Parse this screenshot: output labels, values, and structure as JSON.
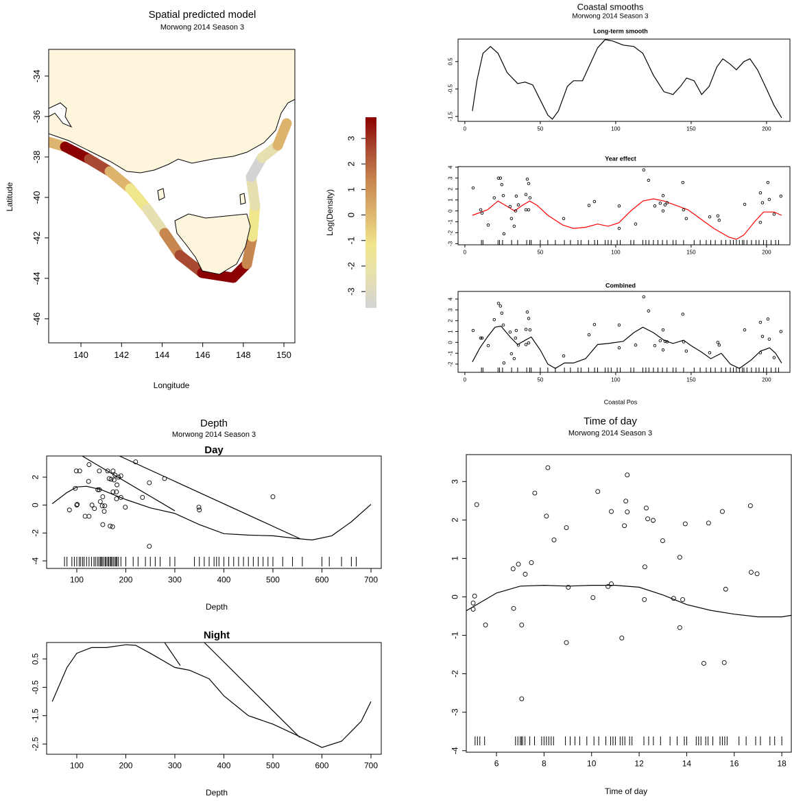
{
  "chart_data": [
    {
      "type": "map",
      "title": "Spatial predicted model",
      "subtitle": "Morwong 2014 Season 3",
      "xlabel": "Longitude",
      "ylabel": "Latitude",
      "xlim": [
        138.41,
        150.54
      ],
      "ylim": [
        -47.19,
        -32.68
      ],
      "xticks": [
        140,
        142,
        144,
        146,
        148,
        150
      ],
      "yticks": [
        -34,
        -36,
        -38,
        -40,
        -42,
        -44,
        -46
      ],
      "colorbar": {
        "label": "Log(Density)",
        "lim": [
          -3.64,
          3.83
        ],
        "ticks": [
          -3,
          -2,
          -1,
          0,
          1,
          2,
          3
        ],
        "colors": [
          "#d3d3d3",
          "#e6e0b0",
          "#f0e68c",
          "#dcb46e",
          "#c8874f",
          "#a84a32",
          "#8b0000"
        ]
      }
    },
    {
      "type": "line",
      "title": "Coastal smooths",
      "subtitle": "Morwong 2014 Season 3",
      "panel_title": "Long-term smooth",
      "xlim": [
        -4.5,
        215.5
      ],
      "ylim": [
        -1.68,
        1.32
      ],
      "xticks": [
        0,
        50,
        100,
        150,
        200
      ],
      "yticks": [
        -1.5,
        -0.5,
        0.5
      ],
      "smooth": [
        {
          "color": "#000000",
          "x": [
            5,
            8,
            12,
            17,
            22,
            28,
            35,
            40,
            45,
            50,
            55,
            58,
            62,
            68,
            72,
            78,
            83,
            88,
            93,
            98,
            105,
            112,
            118,
            125,
            132,
            138,
            143,
            147,
            152,
            157,
            162,
            167,
            171,
            176,
            180,
            185,
            189,
            194,
            200,
            205,
            210
          ],
          "values": [
            -1.3,
            -0.2,
            0.8,
            1.05,
            0.8,
            0.1,
            -0.3,
            -0.25,
            -0.35,
            -0.9,
            -1.45,
            -1.6,
            -1.3,
            -0.4,
            -0.2,
            -0.2,
            0.4,
            1.0,
            1.3,
            1.25,
            1.1,
            1.05,
            0.8,
            0.0,
            -0.6,
            -0.7,
            -0.4,
            -0.1,
            -0.2,
            -0.7,
            -0.4,
            0.3,
            0.6,
            0.4,
            0.2,
            0.5,
            0.6,
            0.2,
            -0.5,
            -1.1,
            -1.55
          ]
        }
      ]
    },
    {
      "type": "scatter",
      "panel_title": "Year effect",
      "xlim": [
        -4.5,
        215.5
      ],
      "ylim": [
        -3.1,
        4.05
      ],
      "xticks": [
        0,
        50,
        100,
        150,
        200
      ],
      "yticks": [
        -3,
        -2,
        -1,
        0,
        1,
        2,
        3,
        4
      ],
      "x": [
        5.5,
        10.5,
        11.4,
        15.5,
        19.5,
        22.3,
        23.6,
        24.5,
        25.5,
        25.9,
        30,
        30.9,
        32.7,
        33.6,
        34.1,
        35.5,
        41.4,
        42.3,
        40.5,
        40.5,
        42.3,
        43.2,
        65.5,
        82.3,
        85.9,
        102.3,
        102.3,
        113.2,
        118.6,
        121.8,
        125.9,
        129.5,
        131.4,
        132.7,
        134.1,
        131.4,
        144.5,
        145,
        146.8,
        162.3,
        167.7,
        168.6,
        185.5,
        195.9,
        195.9,
        197.3,
        200.9,
        201.8,
        205,
        209.5
      ],
      "y": [
        2.1,
        0.1,
        -0.2,
        -1.3,
        1.2,
        3.0,
        3.0,
        2.4,
        1.4,
        -2.1,
        0.4,
        -0.7,
        -1.4,
        0,
        1.35,
        0.55,
        2.9,
        2.5,
        1.5,
        0.1,
        0.1,
        1.2,
        -0.7,
        0.5,
        0.85,
        0.45,
        -1.6,
        -1.2,
        3.75,
        2.8,
        0.45,
        0.7,
        1.4,
        0.55,
        0.75,
        0,
        2.6,
        0.1,
        -0.7,
        -0.55,
        -0.45,
        -0.85,
        0.6,
        -1.05,
        1.65,
        0.75,
        2.6,
        1.05,
        -0.3,
        1.35
      ],
      "smooth": [
        {
          "color": "#ff0000",
          "x": [
            5,
            15,
            22,
            27,
            33,
            38,
            43,
            48,
            55,
            65,
            72,
            80,
            88,
            95,
            102,
            110,
            118,
            125,
            132,
            140,
            148,
            155,
            165,
            175,
            180,
            185,
            192,
            198,
            205,
            210
          ],
          "values": [
            -0.4,
            0.1,
            0.9,
            0.5,
            0.0,
            0.5,
            0.9,
            0.5,
            -0.4,
            -1.3,
            -1.6,
            -1.5,
            -1.2,
            -1.4,
            -1.1,
            0.0,
            0.9,
            1.1,
            0.9,
            0.5,
            0.1,
            -0.6,
            -1.6,
            -2.4,
            -2.6,
            -2.2,
            -1.0,
            -0.1,
            -0.1,
            -0.4
          ]
        }
      ],
      "rug": [
        11,
        12,
        22,
        23,
        25,
        31,
        35,
        41,
        43,
        44,
        50,
        55,
        60,
        66,
        70,
        75,
        77,
        82,
        86,
        88,
        93,
        95,
        97,
        101,
        103,
        110,
        112,
        118,
        120,
        122,
        125,
        128,
        131,
        134,
        138,
        140,
        145,
        152,
        156,
        160,
        163,
        166,
        170,
        173,
        176,
        178,
        180,
        182,
        184,
        185,
        187,
        190,
        193,
        195,
        198,
        200,
        203,
        206,
        208
      ]
    },
    {
      "type": "scatter",
      "panel_title": "Combined",
      "xlabel": "Coastal Pos",
      "xlim": [
        -4.5,
        215.5
      ],
      "ylim": [
        -2.76,
        4.7
      ],
      "xticks": [
        0,
        50,
        100,
        150,
        200
      ],
      "yticks": [
        -2,
        -1,
        0,
        1,
        2,
        3,
        4
      ],
      "x": [
        5.5,
        10.5,
        11.4,
        15.5,
        19.5,
        22.3,
        23.6,
        24.5,
        25.5,
        25.9,
        30,
        30.9,
        32.7,
        33.6,
        34.1,
        35.5,
        41.4,
        42.3,
        40.5,
        40.5,
        42.3,
        43.2,
        65.5,
        82.3,
        85.9,
        102.3,
        102.3,
        113.2,
        118.6,
        121.8,
        125.9,
        129.5,
        131.4,
        132.7,
        134.1,
        131.4,
        144.5,
        145,
        146.8,
        162.3,
        167.7,
        168.6,
        185.5,
        195.9,
        195.9,
        197.3,
        200.9,
        201.8,
        205,
        209.5
      ],
      "y": [
        1.1,
        0.4,
        0.4,
        -0.3,
        2.1,
        3.6,
        3.35,
        2.7,
        1.6,
        -1.9,
        0.95,
        -1.05,
        -1.5,
        0.4,
        1.1,
        -0.25,
        2.8,
        2.2,
        1.2,
        -0.2,
        -0.05,
        1.15,
        -1.25,
        0.7,
        1.65,
        1.6,
        -0.5,
        -0.25,
        4.2,
        2.9,
        -0.3,
        0.15,
        1.15,
        0.1,
        0.05,
        -0.7,
        2.6,
        0.05,
        -0.8,
        -0.95,
        0,
        -0.25,
        1.15,
        1.85,
        -0.95,
        0.55,
        2.15,
        0.3,
        -1.4,
        1.0
      ],
      "smooth": [
        {
          "color": "#000000",
          "x": [
            5,
            10,
            15,
            20,
            24,
            30,
            35,
            40,
            44,
            50,
            55,
            60,
            66,
            72,
            80,
            88,
            95,
            105,
            112,
            118,
            125,
            132,
            138,
            145,
            150,
            157,
            163,
            170,
            176,
            182,
            190,
            196,
            202,
            206,
            210
          ],
          "values": [
            -1.8,
            -0.5,
            0.5,
            1.4,
            1.5,
            0.5,
            -0.2,
            0.2,
            0.5,
            -0.7,
            -2.0,
            -2.4,
            -1.9,
            -1.9,
            -1.5,
            -0.2,
            -0.1,
            0.1,
            0.9,
            1.4,
            0.9,
            0.2,
            -0.1,
            0.2,
            -0.3,
            -0.9,
            -1.5,
            -1.0,
            -2.0,
            -2.4,
            -1.6,
            -0.8,
            -0.5,
            -1.0,
            -1.9
          ]
        }
      ],
      "rug": [
        11,
        12,
        22,
        23,
        25,
        31,
        35,
        41,
        43,
        44,
        50,
        55,
        60,
        66,
        70,
        75,
        77,
        82,
        86,
        88,
        93,
        95,
        97,
        101,
        103,
        110,
        112,
        118,
        120,
        122,
        125,
        128,
        131,
        134,
        138,
        140,
        145,
        152,
        156,
        160,
        163,
        166,
        170,
        173,
        176,
        178,
        180,
        182,
        184,
        185,
        187,
        190,
        193,
        195,
        198,
        200,
        203,
        206,
        208
      ]
    },
    {
      "type": "scatter",
      "title": "Depth",
      "subtitle": "Morwong 2014 Season 3",
      "panel_title": "Day",
      "xlabel": "Depth",
      "xlim": [
        38.5,
        721
      ],
      "ylim": [
        -4.54,
        3.52
      ],
      "xticks": [
        100,
        200,
        300,
        400,
        500,
        600,
        700
      ],
      "yticks": [
        -4,
        -2,
        0,
        2
      ],
      "x": [
        85,
        97,
        99,
        106,
        100,
        101,
        117,
        125,
        125,
        124,
        131,
        136,
        143,
        146,
        146,
        148,
        152,
        153,
        156,
        157,
        163,
        166,
        170,
        168,
        173,
        174,
        174,
        176,
        178,
        181,
        181,
        182,
        185,
        190,
        190,
        199,
        220,
        234,
        248,
        248,
        279,
        349,
        350,
        500,
        153
      ],
      "y": [
        -0.35,
        1.2,
        2.45,
        2.45,
        0,
        0.05,
        -0.8,
        2.9,
        -0.8,
        1.7,
        0,
        -0.25,
        1.1,
        1.1,
        2.45,
        0.25,
        -0.05,
        -1.4,
        -0.45,
        -0.05,
        2.45,
        1.9,
        1.85,
        -1.5,
        -1.55,
        2.45,
        0.95,
        1.8,
        2.15,
        0.45,
        0.95,
        1.45,
        2.0,
        2.1,
        0.55,
        -0.15,
        3.1,
        0.55,
        1.6,
        -2.95,
        1.9,
        -0.15,
        -0.35,
        0.6,
        0.6
      ],
      "smooth": [
        {
          "color": "#000000",
          "x": [
            50,
            80,
            100,
            120,
            150,
            200,
            250,
            300,
            350,
            400,
            450,
            500,
            550,
            580,
            620,
            660,
            700
          ],
          "values": [
            0.1,
            0.9,
            1.3,
            1.35,
            1.1,
            0.4,
            -0.2,
            -0.6,
            -1.4,
            -2.05,
            -2.15,
            -2.2,
            -2.4,
            -2.5,
            -2.2,
            -1.2,
            0.05
          ]
        },
        {
          "color": "#000000",
          "x": [
            111,
            300
          ],
          "values": [
            3.52,
            -0.41
          ]
        },
        {
          "color": "#000000",
          "x": [
            187,
            555
          ],
          "values": [
            3.52,
            -2.4
          ]
        }
      ],
      "rug": [
        75,
        80,
        90,
        95,
        100,
        105,
        108,
        112,
        115,
        120,
        125,
        130,
        135,
        138,
        142,
        145,
        148,
        150,
        152,
        155,
        158,
        160,
        163,
        165,
        168,
        170,
        172,
        175,
        178,
        180,
        182,
        185,
        190,
        200,
        215,
        225,
        240,
        250,
        260,
        270,
        290,
        300,
        340,
        350,
        360,
        370,
        380,
        385,
        390,
        400,
        410,
        420,
        430,
        440,
        450,
        460,
        470,
        480,
        490,
        500,
        520,
        540,
        560,
        600,
        615,
        640,
        660,
        670
      ]
    },
    {
      "type": "line",
      "panel_title": "Night",
      "xlabel": "Depth",
      "xlim": [
        38.5,
        721
      ],
      "ylim": [
        -2.86,
        1.08
      ],
      "xticks": [
        100,
        200,
        300,
        400,
        500,
        600,
        700
      ],
      "yticks": [
        -2.5,
        -1.5,
        -0.5,
        0.5
      ],
      "smooth": [
        {
          "color": "#000000",
          "x": [
            50,
            80,
            100,
            130,
            160,
            200,
            220,
            250,
            300,
            330,
            370,
            400,
            450,
            500,
            550,
            600,
            640,
            680,
            700
          ],
          "values": [
            -1.0,
            0.2,
            0.7,
            0.9,
            0.9,
            1.0,
            0.98,
            0.7,
            0.2,
            0.1,
            -0.2,
            -0.8,
            -1.5,
            -1.8,
            -2.2,
            -2.62,
            -2.4,
            -1.7,
            -1.0
          ]
        },
        {
          "color": "#000000",
          "x": [
            279,
            311
          ],
          "values": [
            1.08,
            0.27
          ]
        },
        {
          "color": "#000000",
          "x": [
            360,
            555
          ],
          "values": [
            1.08,
            -2.27
          ]
        }
      ]
    },
    {
      "type": "scatter",
      "title": "Time of day",
      "subtitle": "Morwong 2014 Season 3",
      "xlabel": "Time of day",
      "xlim": [
        4.73,
        18.4
      ],
      "ylim": [
        -4.04,
        3.7
      ],
      "xticks": [
        6,
        8,
        10,
        12,
        14,
        16,
        18
      ],
      "yticks": [
        -4,
        -3,
        -2,
        -1,
        0,
        1,
        2,
        3
      ],
      "x": [
        5.02,
        5.02,
        5.08,
        5.17,
        5.54,
        6.7,
        6.72,
        6.92,
        7.06,
        7.06,
        7.21,
        7.47,
        7.61,
        8.1,
        8.16,
        8.42,
        8.94,
        8.94,
        9.02,
        10.06,
        10.26,
        10.69,
        10.83,
        10.83,
        11.27,
        11.38,
        11.44,
        11.5,
        11.5,
        12.22,
        12.24,
        12.3,
        12.36,
        12.59,
        12.99,
        13.45,
        13.71,
        13.71,
        13.83,
        13.94,
        14.92,
        14.72,
        15.5,
        15.58,
        15.64,
        16.68,
        16.71,
        16.96
      ],
      "y": [
        -0.32,
        -0.16,
        0.02,
        2.4,
        -0.73,
        0.73,
        -0.3,
        0.85,
        -0.73,
        -2.65,
        0.59,
        0.89,
        2.7,
        2.1,
        3.36,
        1.48,
        1.8,
        -1.19,
        0.25,
        -0.02,
        2.74,
        0.27,
        0.34,
        2.22,
        -1.07,
        1.85,
        2.49,
        3.17,
        2.21,
        -0.07,
        0.78,
        2.31,
        2.03,
        1.99,
        1.46,
        -0.04,
        1.03,
        -0.8,
        -0.07,
        1.9,
        1.92,
        -1.73,
        2.22,
        -1.71,
        0.2,
        2.37,
        0.64,
        0.6
      ],
      "smooth": [
        {
          "color": "#000000",
          "x": [
            4.73,
            6,
            7,
            8,
            9,
            10,
            11,
            12,
            13,
            14,
            15,
            16,
            17,
            18,
            18.4
          ],
          "values": [
            -0.36,
            0.1,
            0.28,
            0.3,
            0.28,
            0.3,
            0.3,
            0.25,
            0.05,
            -0.2,
            -0.35,
            -0.45,
            -0.52,
            -0.52,
            -0.48
          ]
        }
      ],
      "rug": [
        5.1,
        5.2,
        5.3,
        5.5,
        6.8,
        6.9,
        7.0,
        7.05,
        7.1,
        7.2,
        7.4,
        7.6,
        7.9,
        8.0,
        8.1,
        8.2,
        8.3,
        8.4,
        8.9,
        9.1,
        9.3,
        9.5,
        9.8,
        10.1,
        10.3,
        10.6,
        10.8,
        10.9,
        11.0,
        11.2,
        11.3,
        11.4,
        11.6,
        11.7,
        12.2,
        12.4,
        12.6,
        12.9,
        13.3,
        13.6,
        13.9,
        14.0,
        14.4,
        14.5,
        14.6,
        14.8,
        14.9,
        15.1,
        15.4,
        15.5,
        15.6,
        15.7,
        16.2,
        16.5,
        16.9,
        17.1,
        17.5,
        17.7,
        18.0
      ]
    }
  ]
}
